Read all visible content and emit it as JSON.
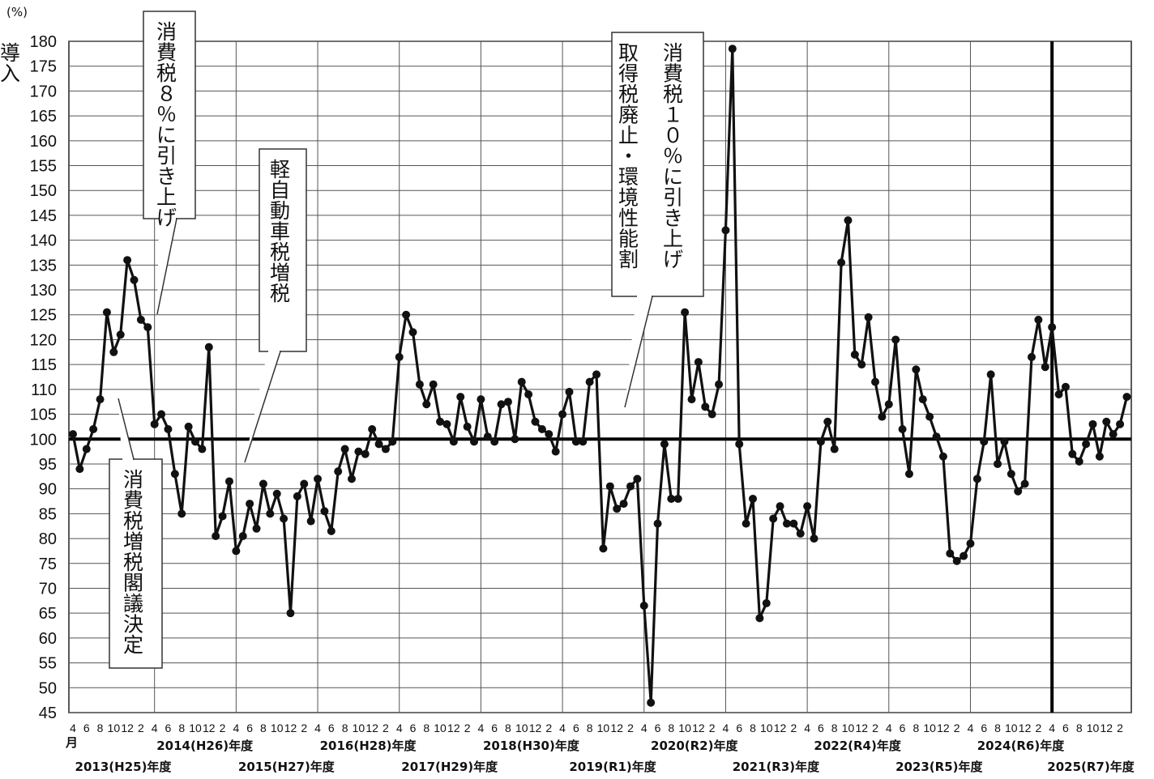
{
  "chart_data": {
    "type": "line",
    "ylabel": "(%)",
    "ylim": [
      45,
      180
    ],
    "ytick_step": 5,
    "grid": true,
    "reference_line": 100,
    "month_unit_label": "月",
    "month_labels": [
      "4",
      "6",
      "8",
      "10",
      "12",
      "2"
    ],
    "fiscal_years": [
      "2013(H25)年度",
      "2014(H26)年度",
      "2015(H27)年度",
      "2016(H28)年度",
      "2017(H29)年度",
      "2018(H30)年度",
      "2019(R1)年度",
      "2020(R2)年度",
      "2021(R3)年度",
      "2022(R4)年度",
      "2023(R5)年度",
      "2024(R6)年度",
      "2025(R7)年度"
    ],
    "x_start": "2013-04",
    "series": [
      {
        "values": [
          101,
          94,
          98,
          102,
          108,
          125.5,
          117.5,
          121,
          136,
          132,
          124,
          122.5,
          103,
          105,
          102,
          93,
          85,
          102.5,
          99.5,
          98,
          118.5,
          80.5,
          84.5,
          91.5,
          77.5,
          80.5,
          87,
          82,
          91,
          85,
          89,
          84,
          65,
          88.5,
          91,
          83.5,
          92,
          85.5,
          81.5,
          93.5,
          98,
          92,
          97.5,
          97,
          102,
          99,
          98,
          99.5,
          116.5,
          125,
          121.5,
          111,
          107,
          111,
          103.5,
          103,
          99.5,
          108.5,
          102.5,
          99.5,
          108,
          100.5,
          99.5,
          107,
          107.5,
          100,
          111.5,
          109,
          103.5,
          102,
          101,
          97.5,
          105,
          109.5,
          99.5,
          99.5,
          111.5,
          113,
          78,
          90.5,
          86,
          87,
          90.5,
          92,
          66.5,
          47,
          83,
          99,
          88,
          88,
          125.5,
          108,
          115.5,
          106.5,
          105,
          111,
          142,
          178.5,
          99,
          83,
          88,
          64,
          67,
          84,
          86.5,
          83,
          83,
          81,
          86.5,
          80,
          99.5,
          103.5,
          98,
          135.5,
          144,
          117,
          115,
          124.5,
          111.5,
          104.5,
          107,
          120,
          102,
          93,
          114,
          108,
          104.5,
          100.5,
          96.5,
          77,
          75.5,
          76.5,
          79,
          92,
          99.5,
          113,
          95,
          99.5,
          93,
          89.5,
          91,
          116.5,
          124,
          114.5,
          122.5,
          109,
          110.5,
          97,
          95.5,
          99,
          103,
          96.5,
          103.5,
          101,
          103,
          108.5
        ]
      }
    ],
    "annotations": [
      {
        "text": "消費税８％に引き上げ"
      },
      {
        "text": "消費税増税閣議決定"
      },
      {
        "text": "軽自動車税増税"
      },
      {
        "text": "消費税１０％に引き上げ取得税廃止・環境性能割導入"
      }
    ],
    "vertical_marker_at": "2025-04"
  }
}
